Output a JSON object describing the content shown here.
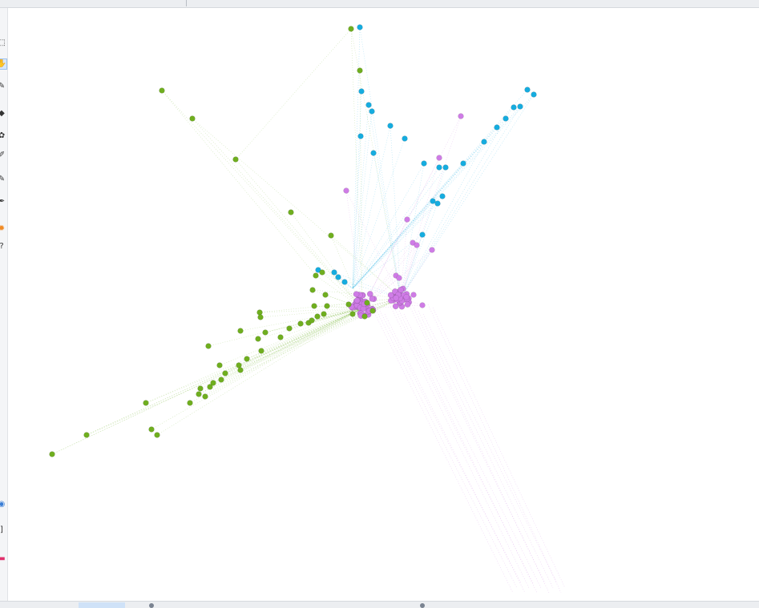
{
  "toolbar": {
    "tools": [
      {
        "name": "rect-select-tool",
        "icon": "rect-select-icon",
        "glyph": "⬚"
      },
      {
        "name": "drag-tool",
        "icon": "hand-icon",
        "glyph": "✋",
        "active": true
      },
      {
        "name": "edge-pencil-tool",
        "icon": "pencil-icon",
        "glyph": "✎"
      },
      {
        "name": "node-diamond-tool",
        "icon": "diamond-icon",
        "glyph": "◆"
      },
      {
        "name": "color-palette-tool",
        "icon": "palette-icon",
        "glyph": "✿"
      },
      {
        "name": "brush-tool",
        "icon": "brush-icon",
        "glyph": "✐"
      },
      {
        "name": "size-tool",
        "icon": "size-icon",
        "glyph": "✎"
      },
      {
        "name": "link-tool",
        "icon": "link-icon",
        "glyph": "✒"
      },
      {
        "name": "gear-tool",
        "icon": "gear-icon",
        "glyph": "✹"
      },
      {
        "name": "help-tool",
        "icon": "question-icon",
        "glyph": "?"
      },
      {
        "name": "target-tool",
        "icon": "target-icon",
        "glyph": "◉"
      },
      {
        "name": "bracket-tool",
        "icon": "bracket-icon",
        "glyph": "]"
      },
      {
        "name": "label-tool",
        "icon": "label-icon",
        "glyph": "▬"
      }
    ]
  },
  "graph": {
    "colors": {
      "green": "#6fae1f",
      "blue": "#15acdf",
      "purple": "#cf7ce6"
    }
  }
}
